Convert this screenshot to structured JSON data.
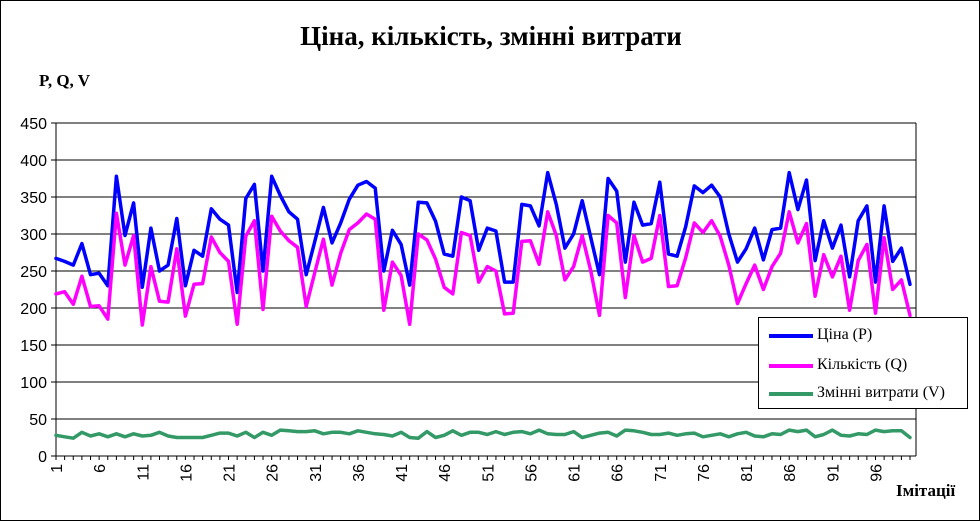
{
  "chart_data": {
    "type": "line",
    "title": "Ціна, кількість, змінні витрати",
    "ylabel": "P, Q, V",
    "xlabel": "Імітації",
    "ylim": [
      0,
      450
    ],
    "yticks": [
      0,
      50,
      100,
      150,
      200,
      250,
      300,
      350,
      400,
      450
    ],
    "xticks": [
      1,
      6,
      11,
      16,
      21,
      26,
      31,
      36,
      41,
      46,
      51,
      56,
      61,
      66,
      71,
      76,
      81,
      86,
      91,
      96
    ],
    "xlim": [
      1,
      100
    ],
    "grid": "horizontal",
    "legend_position": "bottom-right",
    "x": [
      1,
      2,
      3,
      4,
      5,
      6,
      7,
      8,
      9,
      10,
      11,
      12,
      13,
      14,
      15,
      16,
      17,
      18,
      19,
      20,
      21,
      22,
      23,
      24,
      25,
      26,
      27,
      28,
      29,
      30,
      31,
      32,
      33,
      34,
      35,
      36,
      37,
      38,
      39,
      40,
      41,
      42,
      43,
      44,
      45,
      46,
      47,
      48,
      49,
      50,
      51,
      52,
      53,
      54,
      55,
      56,
      57,
      58,
      59,
      60,
      61,
      62,
      63,
      64,
      65,
      66,
      67,
      68,
      69,
      70,
      71,
      72,
      73,
      74,
      75,
      76,
      77,
      78,
      79,
      80,
      81,
      82,
      83,
      84,
      85,
      86,
      87,
      88,
      89,
      90,
      91,
      92,
      93,
      94,
      95,
      96,
      97,
      98,
      99,
      100
    ],
    "series": [
      {
        "name": "Ціна  (P)",
        "color": "#0000ff",
        "values": [
          267,
          263,
          258,
          287,
          245,
          247,
          230,
          378,
          298,
          342,
          228,
          308,
          250,
          258,
          321,
          230,
          278,
          270,
          334,
          320,
          312,
          221,
          348,
          367,
          250,
          378,
          352,
          330,
          320,
          245,
          290,
          336,
          288,
          315,
          347,
          366,
          371,
          362,
          250,
          305,
          286,
          231,
          343,
          342,
          317,
          273,
          270,
          350,
          345,
          278,
          308,
          304,
          235,
          235,
          340,
          338,
          311,
          383,
          340,
          281,
          300,
          345,
          295,
          245,
          375,
          358,
          262,
          343,
          312,
          314,
          370,
          273,
          270,
          310,
          365,
          356,
          366,
          350,
          300,
          262,
          280,
          308,
          265,
          306,
          308,
          383,
          333,
          373,
          264,
          318,
          281,
          312,
          242,
          318,
          338,
          235,
          338,
          263,
          281,
          232
        ]
      },
      {
        "name": "Кількість (Q)",
        "color": "#ff00ff",
        "values": [
          219,
          222,
          205,
          243,
          202,
          203,
          185,
          328,
          258,
          298,
          177,
          256,
          209,
          208,
          280,
          189,
          232,
          233,
          296,
          275,
          263,
          178,
          297,
          318,
          198,
          324,
          304,
          291,
          282,
          202,
          248,
          293,
          231,
          274,
          306,
          315,
          327,
          320,
          197,
          262,
          244,
          178,
          300,
          292,
          266,
          228,
          219,
          302,
          298,
          235,
          256,
          250,
          192,
          193,
          290,
          291,
          259,
          330,
          298,
          238,
          256,
          298,
          250,
          190,
          325,
          315,
          214,
          298,
          262,
          267,
          325,
          229,
          230,
          268,
          315,
          302,
          318,
          297,
          258,
          206,
          233,
          258,
          225,
          256,
          274,
          330,
          288,
          314,
          216,
          272,
          242,
          270,
          197,
          264,
          286,
          193,
          295,
          225,
          238,
          190
        ]
      },
      {
        "name": "Змінні витрати (V)",
        "color": "#339966",
        "values": [
          28,
          26,
          24,
          32,
          27,
          30,
          26,
          30,
          26,
          30,
          27,
          28,
          32,
          27,
          25,
          25,
          25,
          25,
          28,
          31,
          31,
          27,
          32,
          25,
          32,
          28,
          35,
          34,
          33,
          33,
          34,
          30,
          32,
          32,
          30,
          34,
          32,
          30,
          29,
          27,
          32,
          25,
          24,
          33,
          25,
          28,
          34,
          28,
          32,
          32,
          29,
          33,
          29,
          32,
          33,
          30,
          35,
          30,
          29,
          29,
          33,
          25,
          28,
          31,
          32,
          27,
          35,
          34,
          32,
          29,
          29,
          31,
          28,
          30,
          31,
          26,
          28,
          30,
          26,
          30,
          32,
          27,
          26,
          30,
          29,
          35,
          33,
          35,
          26,
          29,
          35,
          28,
          27,
          30,
          29,
          35,
          33,
          34,
          34,
          25
        ]
      }
    ]
  }
}
